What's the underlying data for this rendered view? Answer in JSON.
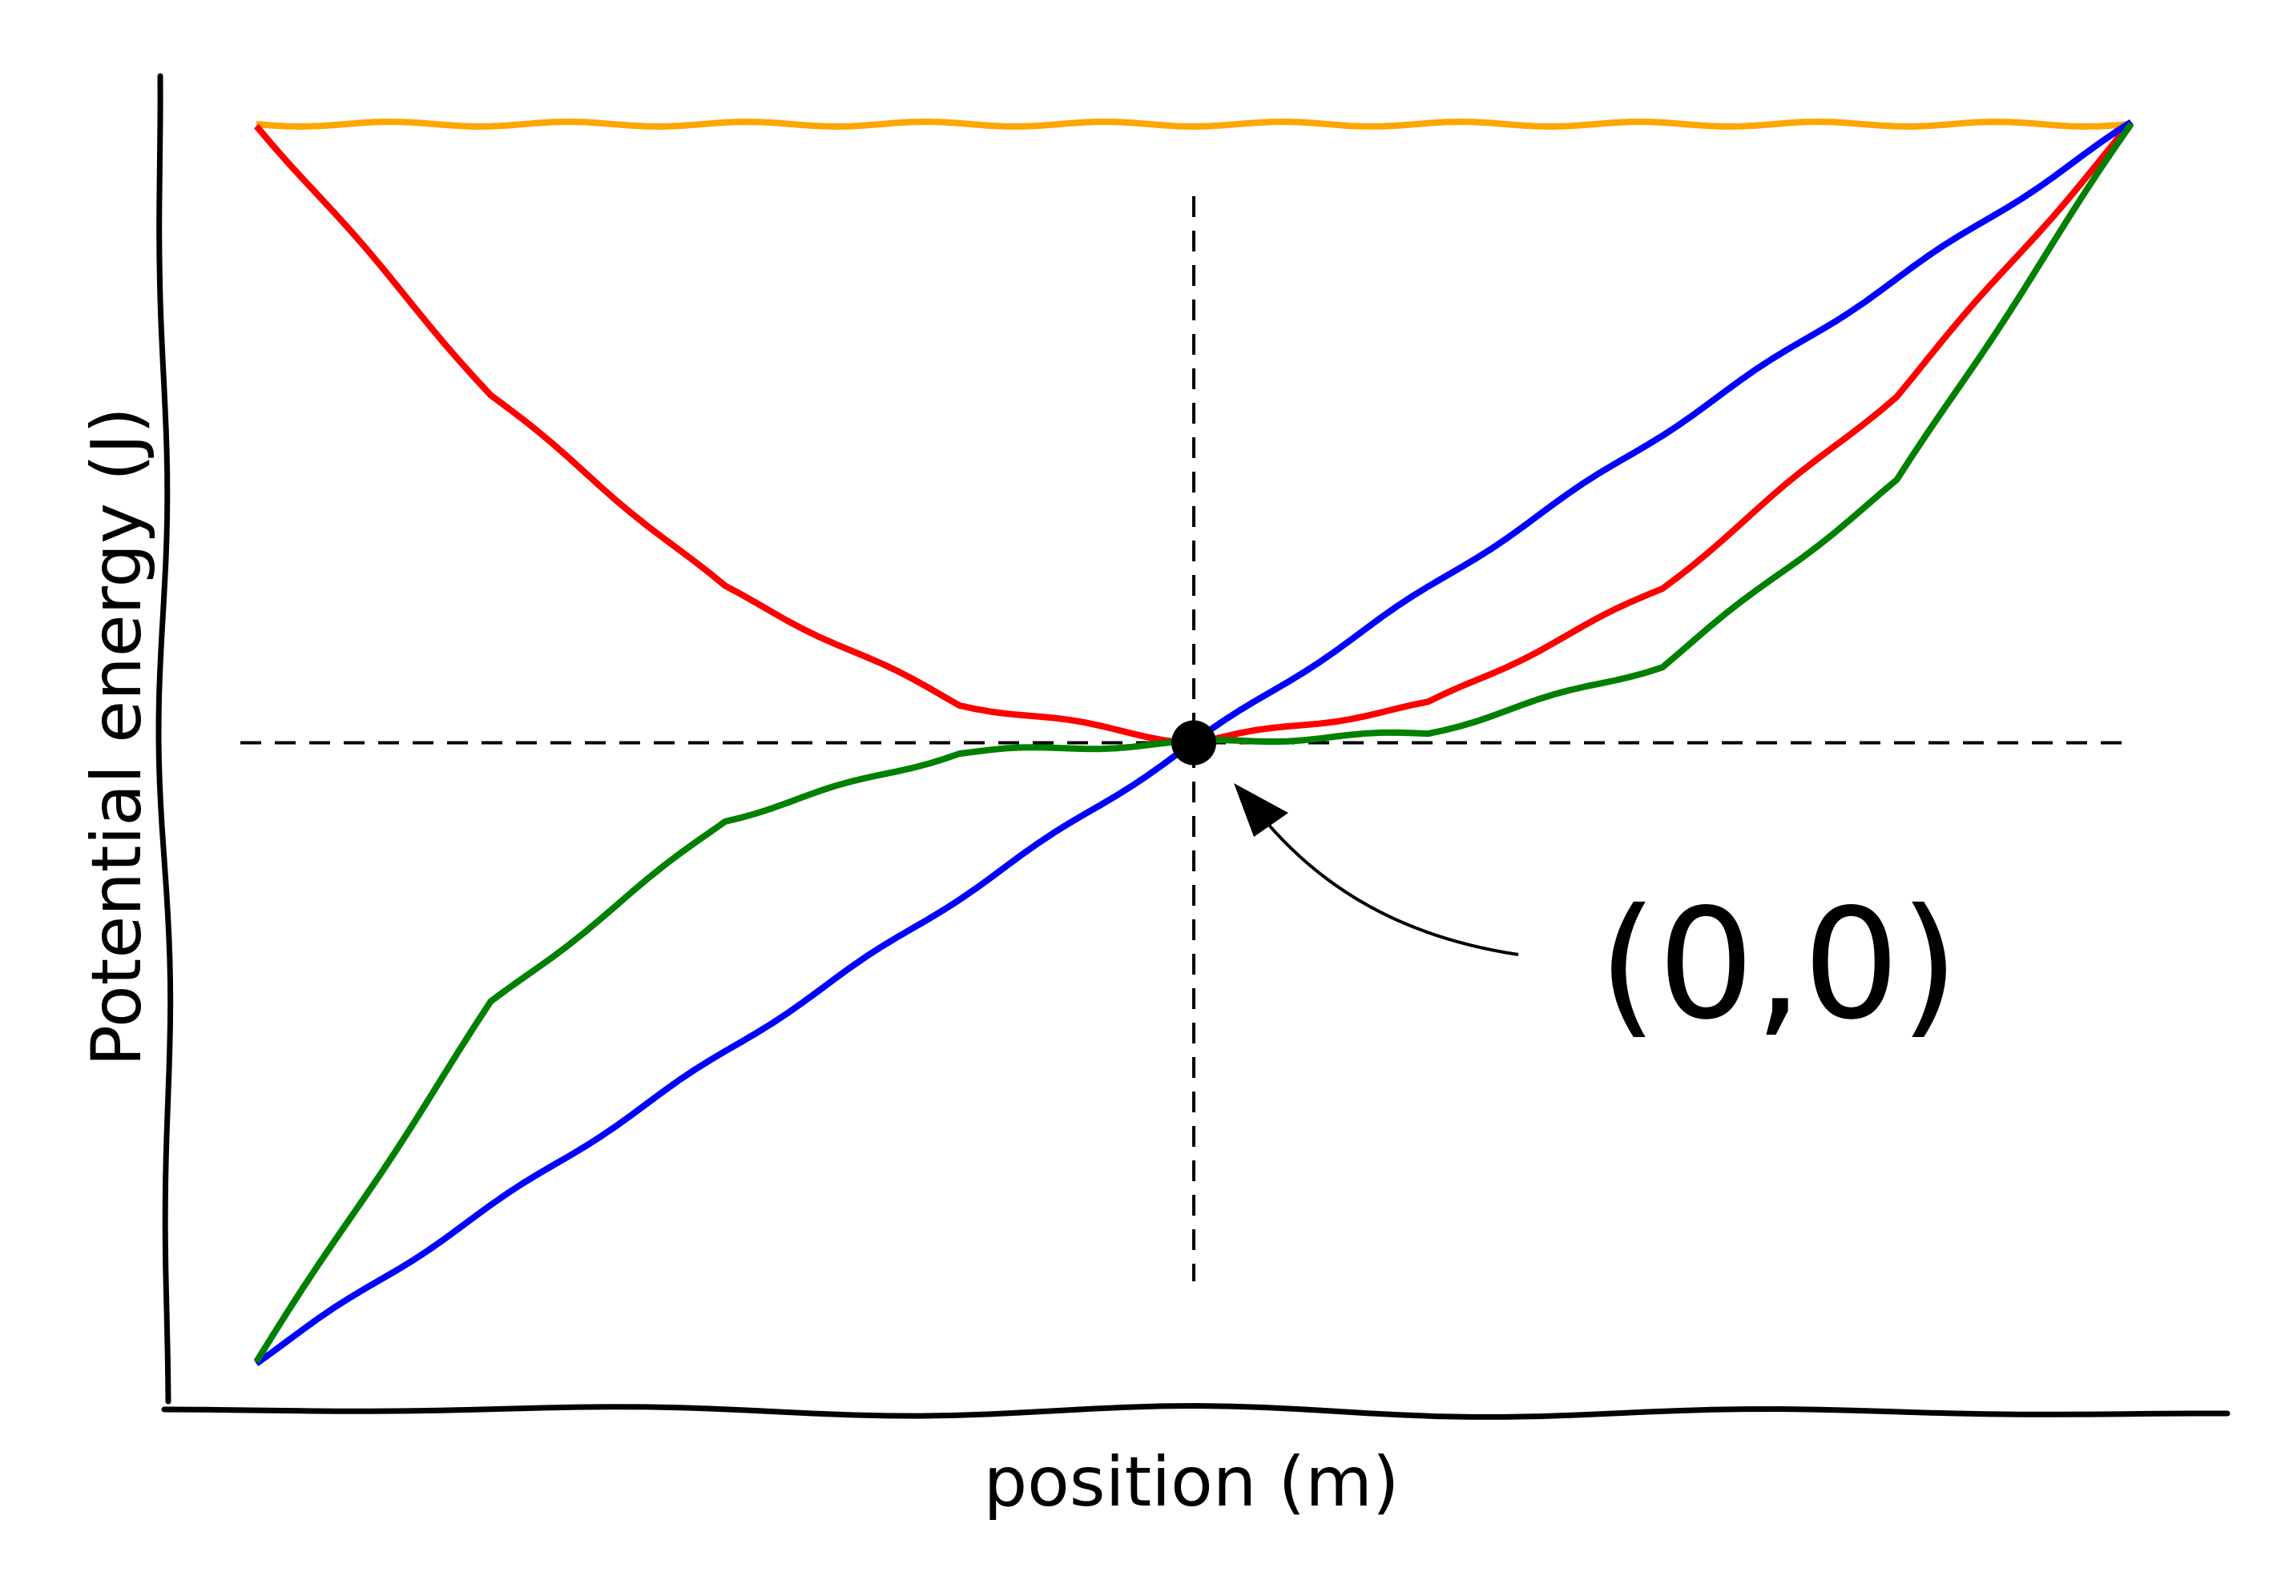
{
  "chart_data": {
    "type": "line",
    "title": "",
    "xlabel": "position (m)",
    "ylabel": "Potential energy (J)",
    "xlim": [
      -1,
      1
    ],
    "ylim": [
      -1,
      1
    ],
    "xticks": [],
    "yticks": [],
    "grid": false,
    "legend": "none",
    "style": "hand-drawn (xkcd)",
    "reference_lines": [
      {
        "orientation": "horizontal",
        "value": 0,
        "style": "dashed"
      },
      {
        "orientation": "vertical",
        "value": 0,
        "style": "dashed"
      }
    ],
    "series": [
      {
        "color": "#ffa500",
        "x": [
          -1,
          1
        ],
        "y": [
          1,
          1
        ]
      },
      {
        "color": "#ff0000",
        "x": [
          -1,
          -0.75,
          -0.5,
          -0.25,
          0,
          0.25,
          0.5,
          0.75,
          1
        ],
        "y": [
          1,
          0.5625,
          0.25,
          0.0625,
          0,
          0.0625,
          0.25,
          0.5625,
          1
        ]
      },
      {
        "color": "#0000ff",
        "x": [
          -1,
          -0.75,
          -0.5,
          -0.25,
          0,
          0.25,
          0.5,
          0.75,
          1
        ],
        "y": [
          -1,
          -0.75,
          -0.5,
          -0.25,
          0,
          0.25,
          0.5,
          0.75,
          1
        ]
      },
      {
        "color": "#008000",
        "x": [
          -1,
          -0.75,
          -0.5,
          -0.25,
          0,
          0.25,
          0.5,
          0.75,
          1
        ],
        "y": [
          -1,
          -0.4219,
          -0.125,
          -0.0156,
          0,
          0.0156,
          0.125,
          0.4219,
          1
        ]
      }
    ],
    "annotations": [
      {
        "text": "(0,0)",
        "x": 0,
        "y": 0,
        "marker": "filled-circle",
        "arrow": true
      }
    ]
  }
}
